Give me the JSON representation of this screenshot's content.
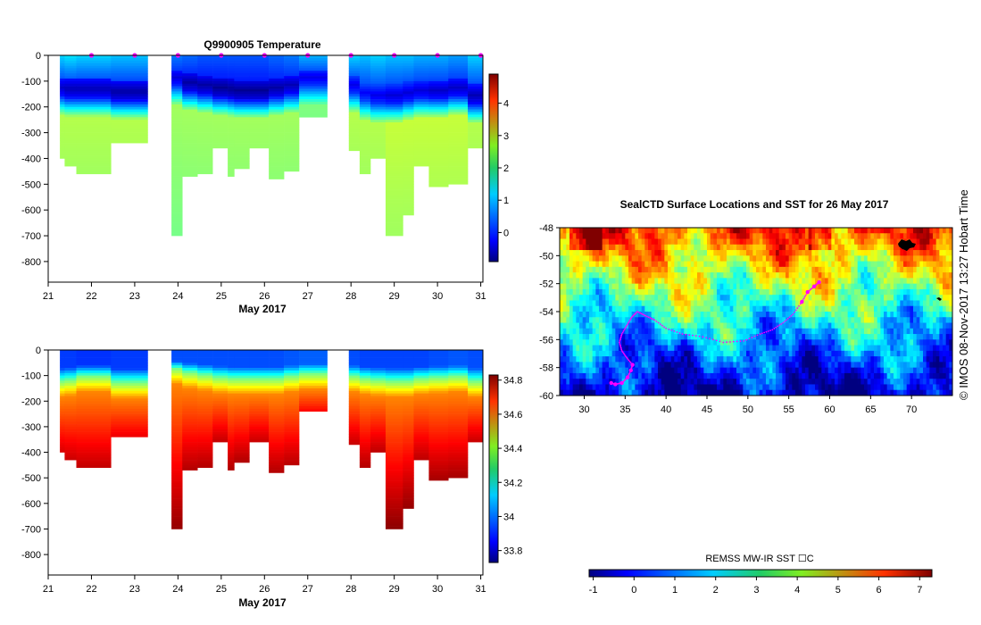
{
  "chart_data": [
    {
      "type": "heatmap",
      "title": "Q9900905  Temperature",
      "xlabel": "May 2017",
      "xticks": [
        21,
        22,
        23,
        24,
        25,
        26,
        27,
        28,
        29,
        30,
        31
      ],
      "xlim": [
        21,
        31.05
      ],
      "yticks": [
        0,
        -100,
        -200,
        -300,
        -400,
        -500,
        -600,
        -700,
        -800
      ],
      "ylim": [
        -880,
        0
      ],
      "colorbar": {
        "ticks": [
          0,
          1,
          2,
          3,
          4
        ],
        "range": [
          -0.9,
          4.9
        ]
      },
      "profile_markers": [
        22,
        23,
        24,
        25,
        26,
        27,
        28,
        29,
        30,
        31
      ],
      "profiles": [
        {
          "t0": 21.27,
          "t1": 21.38,
          "depth": 400,
          "surface": 1.0,
          "min": -0.5,
          "ml": 120,
          "deep": 2.3
        },
        {
          "t0": 21.38,
          "t1": 21.65,
          "depth": 425,
          "surface": 1.1,
          "min": -0.6,
          "ml": 125,
          "deep": 2.3
        },
        {
          "t0": 21.65,
          "t1": 22.45,
          "depth": 455,
          "surface": 1.0,
          "min": -0.6,
          "ml": 125,
          "deep": 2.3
        },
        {
          "t0": 22.45,
          "t1": 23.3,
          "depth": 340,
          "surface": 0.9,
          "min": -0.7,
          "ml": 135,
          "deep": 2.3
        },
        {
          "t0": 23.85,
          "t1": 24.1,
          "depth": 700,
          "surface": 0.5,
          "min": -0.4,
          "ml": 80,
          "deep": 2.2
        },
        {
          "t0": 24.1,
          "t1": 24.45,
          "depth": 470,
          "surface": 0.4,
          "min": -0.7,
          "ml": 100,
          "deep": 2.2
        },
        {
          "t0": 24.45,
          "t1": 24.8,
          "depth": 460,
          "surface": 0.3,
          "min": -0.7,
          "ml": 110,
          "deep": 2.2
        },
        {
          "t0": 24.8,
          "t1": 25.15,
          "depth": 355,
          "surface": 0.3,
          "min": -0.8,
          "ml": 120,
          "deep": 2.2
        },
        {
          "t0": 25.15,
          "t1": 25.3,
          "depth": 465,
          "surface": 0.3,
          "min": -0.8,
          "ml": 125,
          "deep": 2.2
        },
        {
          "t0": 25.3,
          "t1": 25.65,
          "depth": 435,
          "surface": 0.3,
          "min": -0.8,
          "ml": 130,
          "deep": 2.2
        },
        {
          "t0": 25.65,
          "t1": 26.1,
          "depth": 360,
          "surface": 0.3,
          "min": -0.8,
          "ml": 130,
          "deep": 2.2
        },
        {
          "t0": 26.1,
          "t1": 26.45,
          "depth": 480,
          "surface": 0.4,
          "min": -0.7,
          "ml": 120,
          "deep": 2.2
        },
        {
          "t0": 26.45,
          "t1": 26.8,
          "depth": 445,
          "surface": 0.5,
          "min": -0.6,
          "ml": 110,
          "deep": 2.2
        },
        {
          "t0": 26.8,
          "t1": 27.45,
          "depth": 240,
          "surface": 0.8,
          "min": -0.3,
          "ml": 80,
          "deep": 2.0
        },
        {
          "t0": 27.95,
          "t1": 28.2,
          "depth": 370,
          "surface": 1.0,
          "min": -0.3,
          "ml": 110,
          "deep": 2.3
        },
        {
          "t0": 28.2,
          "t1": 28.45,
          "depth": 460,
          "surface": 0.9,
          "min": -0.2,
          "ml": 140,
          "deep": 2.3
        },
        {
          "t0": 28.45,
          "t1": 28.8,
          "depth": 400,
          "surface": 1.0,
          "min": -0.3,
          "ml": 150,
          "deep": 2.3
        },
        {
          "t0": 28.8,
          "t1": 29.2,
          "depth": 700,
          "surface": 0.9,
          "min": -0.4,
          "ml": 150,
          "deep": 2.4
        },
        {
          "t0": 29.2,
          "t1": 29.45,
          "depth": 620,
          "surface": 0.9,
          "min": -0.4,
          "ml": 140,
          "deep": 2.4
        },
        {
          "t0": 29.45,
          "t1": 29.8,
          "depth": 430,
          "surface": 0.8,
          "min": -0.4,
          "ml": 130,
          "deep": 2.4
        },
        {
          "t0": 29.8,
          "t1": 30.25,
          "depth": 505,
          "surface": 0.8,
          "min": -0.5,
          "ml": 130,
          "deep": 2.4
        },
        {
          "t0": 30.25,
          "t1": 30.7,
          "depth": 495,
          "surface": 0.7,
          "min": -0.5,
          "ml": 120,
          "deep": 2.4
        },
        {
          "t0": 30.7,
          "t1": 31.05,
          "depth": 360,
          "surface": 1.0,
          "min": -0.6,
          "ml": 150,
          "deep": 2.3
        }
      ]
    },
    {
      "type": "heatmap",
      "title": "",
      "xlabel": "May 2017",
      "xticks": [
        21,
        22,
        23,
        24,
        25,
        26,
        27,
        28,
        29,
        30,
        31
      ],
      "xlim": [
        21,
        31.05
      ],
      "yticks": [
        0,
        -100,
        -200,
        -300,
        -400,
        -500,
        -600,
        -700,
        -800
      ],
      "ylim": [
        -880,
        0
      ],
      "colorbar": {
        "ticks": [
          33.8,
          34,
          34.2,
          34.4,
          34.6,
          34.8
        ],
        "range": [
          33.73,
          34.83
        ]
      },
      "profiles": [
        {
          "t0": 21.27,
          "t1": 21.38,
          "depth": 400,
          "surface": 33.93,
          "halocline": 120,
          "deep": 34.74
        },
        {
          "t0": 21.38,
          "t1": 21.65,
          "depth": 425,
          "surface": 33.93,
          "halocline": 115,
          "deep": 34.75
        },
        {
          "t0": 21.65,
          "t1": 22.45,
          "depth": 455,
          "surface": 33.92,
          "halocline": 100,
          "deep": 34.76
        },
        {
          "t0": 22.45,
          "t1": 23.3,
          "depth": 340,
          "surface": 33.93,
          "halocline": 125,
          "deep": 34.72
        },
        {
          "t0": 23.85,
          "t1": 24.1,
          "depth": 700,
          "surface": 33.95,
          "halocline": 70,
          "deep": 34.81
        },
        {
          "t0": 24.1,
          "t1": 24.45,
          "depth": 470,
          "surface": 33.95,
          "halocline": 85,
          "deep": 34.78
        },
        {
          "t0": 24.45,
          "t1": 24.8,
          "depth": 460,
          "surface": 33.95,
          "halocline": 95,
          "deep": 34.78
        },
        {
          "t0": 24.8,
          "t1": 25.15,
          "depth": 355,
          "surface": 33.95,
          "halocline": 105,
          "deep": 34.76
        },
        {
          "t0": 25.15,
          "t1": 25.3,
          "depth": 465,
          "surface": 33.95,
          "halocline": 110,
          "deep": 34.78
        },
        {
          "t0": 25.3,
          "t1": 25.65,
          "depth": 435,
          "surface": 33.95,
          "halocline": 110,
          "deep": 34.78
        },
        {
          "t0": 25.65,
          "t1": 26.1,
          "depth": 360,
          "surface": 33.95,
          "halocline": 110,
          "deep": 34.76
        },
        {
          "t0": 26.1,
          "t1": 26.45,
          "depth": 480,
          "surface": 33.95,
          "halocline": 110,
          "deep": 34.78
        },
        {
          "t0": 26.45,
          "t1": 26.8,
          "depth": 445,
          "surface": 33.96,
          "halocline": 100,
          "deep": 34.77
        },
        {
          "t0": 26.8,
          "t1": 27.45,
          "depth": 240,
          "surface": 33.97,
          "halocline": 90,
          "deep": 34.7
        },
        {
          "t0": 27.95,
          "t1": 28.2,
          "depth": 370,
          "surface": 33.95,
          "halocline": 100,
          "deep": 34.76
        },
        {
          "t0": 28.2,
          "t1": 28.45,
          "depth": 460,
          "surface": 33.94,
          "halocline": 110,
          "deep": 34.78
        },
        {
          "t0": 28.45,
          "t1": 28.8,
          "depth": 400,
          "surface": 33.94,
          "halocline": 115,
          "deep": 34.77
        },
        {
          "t0": 28.8,
          "t1": 29.2,
          "depth": 700,
          "surface": 33.94,
          "halocline": 120,
          "deep": 34.82
        },
        {
          "t0": 29.2,
          "t1": 29.45,
          "depth": 620,
          "surface": 33.94,
          "halocline": 120,
          "deep": 34.81
        },
        {
          "t0": 29.45,
          "t1": 29.8,
          "depth": 430,
          "surface": 33.94,
          "halocline": 110,
          "deep": 34.77
        },
        {
          "t0": 29.8,
          "t1": 30.25,
          "depth": 505,
          "surface": 33.95,
          "halocline": 105,
          "deep": 34.79
        },
        {
          "t0": 30.25,
          "t1": 30.7,
          "depth": 495,
          "surface": 33.96,
          "halocline": 100,
          "deep": 34.79
        },
        {
          "t0": 30.7,
          "t1": 31.05,
          "depth": 360,
          "surface": 33.95,
          "halocline": 120,
          "deep": 34.76
        }
      ]
    },
    {
      "type": "map",
      "title": "SealCTD Surface Locations and SST for 26 May 2017",
      "xticks": [
        30,
        35,
        40,
        45,
        50,
        55,
        60,
        65,
        70
      ],
      "yticks": [
        -48,
        -50,
        -52,
        -54,
        -56,
        -58,
        -60
      ],
      "lon_range": [
        27,
        75
      ],
      "lat_range": [
        -60,
        -48
      ],
      "track_color": "#ff00ff",
      "track": [
        [
          33.3,
          -59.1
        ],
        [
          33.8,
          -59.2
        ],
        [
          34.6,
          -59.1
        ],
        [
          35.3,
          -58.7
        ],
        [
          35.7,
          -58.2
        ],
        [
          35.9,
          -57.8
        ],
        [
          35.2,
          -57.3
        ],
        [
          34.6,
          -56.8
        ],
        [
          34.3,
          -56.2
        ],
        [
          34.6,
          -55.6
        ],
        [
          35.2,
          -55.0
        ],
        [
          35.8,
          -54.4
        ],
        [
          36.5,
          -54.0
        ],
        [
          37.5,
          -54.3
        ],
        [
          38.6,
          -54.6
        ],
        [
          40.0,
          -55.2
        ],
        [
          42.0,
          -55.6
        ],
        [
          44.5,
          -55.8
        ],
        [
          47.0,
          -56.2
        ],
        [
          49.5,
          -56.1
        ],
        [
          51.5,
          -55.6
        ],
        [
          53.0,
          -55.3
        ],
        [
          54.3,
          -54.8
        ],
        [
          55.5,
          -54.2
        ],
        [
          56.6,
          -53.3
        ],
        [
          57.3,
          -52.6
        ],
        [
          58.1,
          -52.2
        ],
        [
          58.7,
          -51.9
        ]
      ],
      "colorbar_label": "REMSS MW-IR SST ☐C",
      "colorbar_ticks": [
        -1,
        0,
        1,
        2,
        3,
        4,
        5,
        6,
        7
      ],
      "colorbar_range": [
        -1.1,
        7.3
      ]
    }
  ],
  "side_label": "©  IMOS 08-Nov-2017 13:27 Hobart Time"
}
